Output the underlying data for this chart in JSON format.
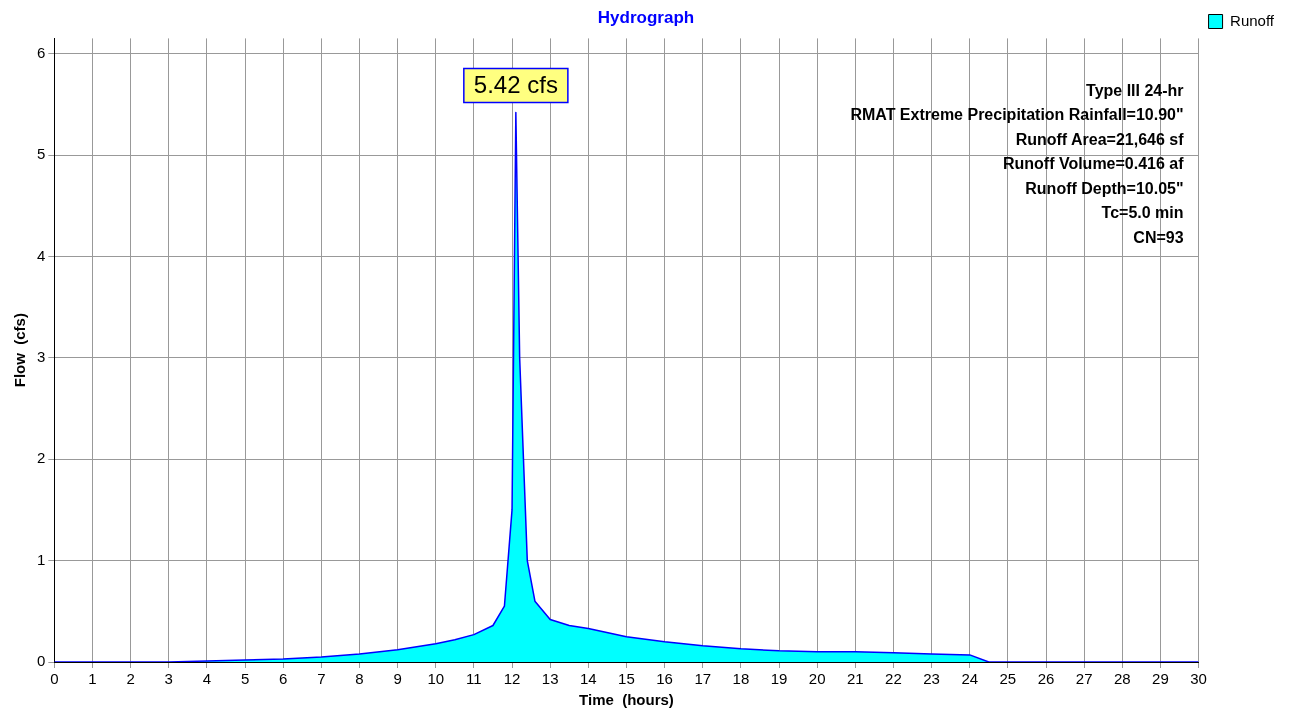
{
  "chart_data": {
    "type": "area",
    "title": "Hydrograph",
    "xlabel": "Time  (hours)",
    "ylabel": "Flow  (cfs)",
    "x": [
      0,
      1,
      2,
      3,
      4,
      5,
      6,
      7,
      8,
      9,
      10,
      10.5,
      11,
      11.5,
      11.8,
      12.0,
      12.1,
      12.2,
      12.4,
      12.6,
      13,
      13.5,
      14,
      15,
      16,
      17,
      18,
      19,
      20,
      21,
      22,
      23,
      24,
      24.5,
      25,
      26,
      27,
      28,
      29,
      30
    ],
    "series": [
      {
        "name": "Runoff",
        "color": "#00ffff",
        "values": [
          0,
          0,
          0,
          0,
          0.01,
          0.02,
          0.03,
          0.05,
          0.08,
          0.12,
          0.18,
          0.22,
          0.27,
          0.36,
          0.55,
          1.5,
          5.42,
          3.0,
          1.0,
          0.6,
          0.42,
          0.36,
          0.33,
          0.25,
          0.2,
          0.16,
          0.13,
          0.11,
          0.1,
          0.1,
          0.09,
          0.08,
          0.07,
          0,
          0,
          0,
          0,
          0,
          0,
          0
        ]
      }
    ],
    "xlim": [
      0,
      30
    ],
    "xticks": [
      0,
      1,
      2,
      3,
      4,
      5,
      6,
      7,
      8,
      9,
      10,
      11,
      12,
      13,
      14,
      15,
      16,
      17,
      18,
      19,
      20,
      21,
      22,
      23,
      24,
      25,
      26,
      27,
      28,
      29,
      30
    ],
    "ylim": [
      0,
      6.15
    ],
    "yticks": [
      0,
      1,
      2,
      3,
      4,
      5,
      6
    ],
    "grid": true,
    "legend": "top right",
    "marker": "none",
    "line_style": "solid",
    "annotations": [
      {
        "text": "5.42 cfs",
        "x": 12.1,
        "y": 5.42
      },
      "Type III 24-hr",
      "RMAT Extreme Precipitation Rainfall=10.90\"",
      "Runoff Area=21,646 sf",
      "Runoff Volume=0.416 af",
      "Runoff Depth=10.05\"",
      "Tc=5.0 min",
      "CN=93"
    ]
  }
}
